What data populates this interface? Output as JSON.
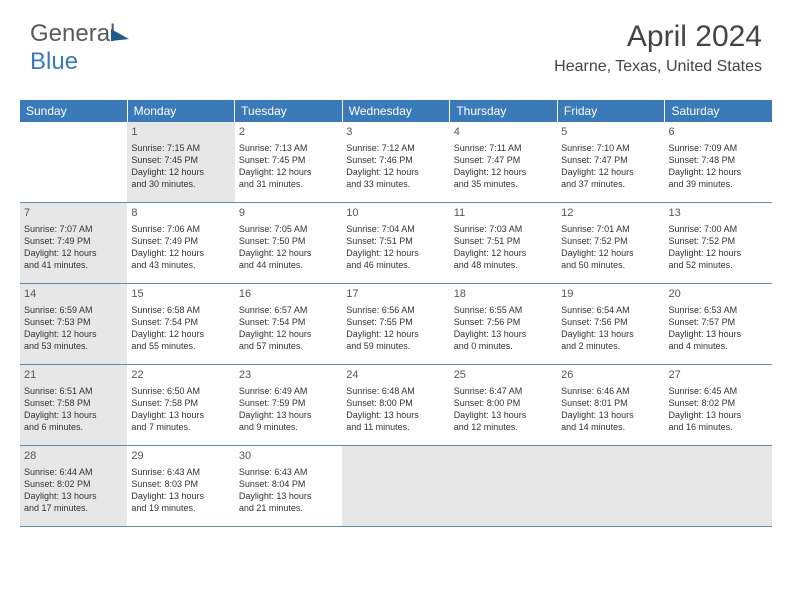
{
  "logo": {
    "part1": "General",
    "part2": "Blue"
  },
  "header": {
    "month_title": "April 2024",
    "location": "Hearne, Texas, United States"
  },
  "styling": {
    "header_bg": "#3a7ab8",
    "header_text": "#ffffff",
    "row_border": "#6688aa",
    "shaded_bg": "#e7e7e7",
    "text_color": "#333333",
    "month_title_fontsize": 30,
    "location_fontsize": 16,
    "weekday_fontsize": 12,
    "daynum_fontsize": 11,
    "cell_fontsize": 9
  },
  "weekdays": [
    "Sunday",
    "Monday",
    "Tuesday",
    "Wednesday",
    "Thursday",
    "Friday",
    "Saturday"
  ],
  "weeks": [
    [
      {
        "day": "",
        "shaded": false,
        "sunrise": "",
        "sunset": "",
        "daylight1": "",
        "daylight2": ""
      },
      {
        "day": "1",
        "shaded": true,
        "sunrise": "Sunrise: 7:15 AM",
        "sunset": "Sunset: 7:45 PM",
        "daylight1": "Daylight: 12 hours",
        "daylight2": "and 30 minutes."
      },
      {
        "day": "2",
        "shaded": false,
        "sunrise": "Sunrise: 7:13 AM",
        "sunset": "Sunset: 7:45 PM",
        "daylight1": "Daylight: 12 hours",
        "daylight2": "and 31 minutes."
      },
      {
        "day": "3",
        "shaded": false,
        "sunrise": "Sunrise: 7:12 AM",
        "sunset": "Sunset: 7:46 PM",
        "daylight1": "Daylight: 12 hours",
        "daylight2": "and 33 minutes."
      },
      {
        "day": "4",
        "shaded": false,
        "sunrise": "Sunrise: 7:11 AM",
        "sunset": "Sunset: 7:47 PM",
        "daylight1": "Daylight: 12 hours",
        "daylight2": "and 35 minutes."
      },
      {
        "day": "5",
        "shaded": false,
        "sunrise": "Sunrise: 7:10 AM",
        "sunset": "Sunset: 7:47 PM",
        "daylight1": "Daylight: 12 hours",
        "daylight2": "and 37 minutes."
      },
      {
        "day": "6",
        "shaded": false,
        "sunrise": "Sunrise: 7:09 AM",
        "sunset": "Sunset: 7:48 PM",
        "daylight1": "Daylight: 12 hours",
        "daylight2": "and 39 minutes."
      }
    ],
    [
      {
        "day": "7",
        "shaded": true,
        "sunrise": "Sunrise: 7:07 AM",
        "sunset": "Sunset: 7:49 PM",
        "daylight1": "Daylight: 12 hours",
        "daylight2": "and 41 minutes."
      },
      {
        "day": "8",
        "shaded": false,
        "sunrise": "Sunrise: 7:06 AM",
        "sunset": "Sunset: 7:49 PM",
        "daylight1": "Daylight: 12 hours",
        "daylight2": "and 43 minutes."
      },
      {
        "day": "9",
        "shaded": false,
        "sunrise": "Sunrise: 7:05 AM",
        "sunset": "Sunset: 7:50 PM",
        "daylight1": "Daylight: 12 hours",
        "daylight2": "and 44 minutes."
      },
      {
        "day": "10",
        "shaded": false,
        "sunrise": "Sunrise: 7:04 AM",
        "sunset": "Sunset: 7:51 PM",
        "daylight1": "Daylight: 12 hours",
        "daylight2": "and 46 minutes."
      },
      {
        "day": "11",
        "shaded": false,
        "sunrise": "Sunrise: 7:03 AM",
        "sunset": "Sunset: 7:51 PM",
        "daylight1": "Daylight: 12 hours",
        "daylight2": "and 48 minutes."
      },
      {
        "day": "12",
        "shaded": false,
        "sunrise": "Sunrise: 7:01 AM",
        "sunset": "Sunset: 7:52 PM",
        "daylight1": "Daylight: 12 hours",
        "daylight2": "and 50 minutes."
      },
      {
        "day": "13",
        "shaded": false,
        "sunrise": "Sunrise: 7:00 AM",
        "sunset": "Sunset: 7:52 PM",
        "daylight1": "Daylight: 12 hours",
        "daylight2": "and 52 minutes."
      }
    ],
    [
      {
        "day": "14",
        "shaded": true,
        "sunrise": "Sunrise: 6:59 AM",
        "sunset": "Sunset: 7:53 PM",
        "daylight1": "Daylight: 12 hours",
        "daylight2": "and 53 minutes."
      },
      {
        "day": "15",
        "shaded": false,
        "sunrise": "Sunrise: 6:58 AM",
        "sunset": "Sunset: 7:54 PM",
        "daylight1": "Daylight: 12 hours",
        "daylight2": "and 55 minutes."
      },
      {
        "day": "16",
        "shaded": false,
        "sunrise": "Sunrise: 6:57 AM",
        "sunset": "Sunset: 7:54 PM",
        "daylight1": "Daylight: 12 hours",
        "daylight2": "and 57 minutes."
      },
      {
        "day": "17",
        "shaded": false,
        "sunrise": "Sunrise: 6:56 AM",
        "sunset": "Sunset: 7:55 PM",
        "daylight1": "Daylight: 12 hours",
        "daylight2": "and 59 minutes."
      },
      {
        "day": "18",
        "shaded": false,
        "sunrise": "Sunrise: 6:55 AM",
        "sunset": "Sunset: 7:56 PM",
        "daylight1": "Daylight: 13 hours",
        "daylight2": "and 0 minutes."
      },
      {
        "day": "19",
        "shaded": false,
        "sunrise": "Sunrise: 6:54 AM",
        "sunset": "Sunset: 7:56 PM",
        "daylight1": "Daylight: 13 hours",
        "daylight2": "and 2 minutes."
      },
      {
        "day": "20",
        "shaded": false,
        "sunrise": "Sunrise: 6:53 AM",
        "sunset": "Sunset: 7:57 PM",
        "daylight1": "Daylight: 13 hours",
        "daylight2": "and 4 minutes."
      }
    ],
    [
      {
        "day": "21",
        "shaded": true,
        "sunrise": "Sunrise: 6:51 AM",
        "sunset": "Sunset: 7:58 PM",
        "daylight1": "Daylight: 13 hours",
        "daylight2": "and 6 minutes."
      },
      {
        "day": "22",
        "shaded": false,
        "sunrise": "Sunrise: 6:50 AM",
        "sunset": "Sunset: 7:58 PM",
        "daylight1": "Daylight: 13 hours",
        "daylight2": "and 7 minutes."
      },
      {
        "day": "23",
        "shaded": false,
        "sunrise": "Sunrise: 6:49 AM",
        "sunset": "Sunset: 7:59 PM",
        "daylight1": "Daylight: 13 hours",
        "daylight2": "and 9 minutes."
      },
      {
        "day": "24",
        "shaded": false,
        "sunrise": "Sunrise: 6:48 AM",
        "sunset": "Sunset: 8:00 PM",
        "daylight1": "Daylight: 13 hours",
        "daylight2": "and 11 minutes."
      },
      {
        "day": "25",
        "shaded": false,
        "sunrise": "Sunrise: 6:47 AM",
        "sunset": "Sunset: 8:00 PM",
        "daylight1": "Daylight: 13 hours",
        "daylight2": "and 12 minutes."
      },
      {
        "day": "26",
        "shaded": false,
        "sunrise": "Sunrise: 6:46 AM",
        "sunset": "Sunset: 8:01 PM",
        "daylight1": "Daylight: 13 hours",
        "daylight2": "and 14 minutes."
      },
      {
        "day": "27",
        "shaded": false,
        "sunrise": "Sunrise: 6:45 AM",
        "sunset": "Sunset: 8:02 PM",
        "daylight1": "Daylight: 13 hours",
        "daylight2": "and 16 minutes."
      }
    ],
    [
      {
        "day": "28",
        "shaded": true,
        "sunrise": "Sunrise: 6:44 AM",
        "sunset": "Sunset: 8:02 PM",
        "daylight1": "Daylight: 13 hours",
        "daylight2": "and 17 minutes."
      },
      {
        "day": "29",
        "shaded": false,
        "sunrise": "Sunrise: 6:43 AM",
        "sunset": "Sunset: 8:03 PM",
        "daylight1": "Daylight: 13 hours",
        "daylight2": "and 19 minutes."
      },
      {
        "day": "30",
        "shaded": false,
        "sunrise": "Sunrise: 6:43 AM",
        "sunset": "Sunset: 8:04 PM",
        "daylight1": "Daylight: 13 hours",
        "daylight2": "and 21 minutes."
      },
      {
        "day": "",
        "shaded": true,
        "sunrise": "",
        "sunset": "",
        "daylight1": "",
        "daylight2": ""
      },
      {
        "day": "",
        "shaded": true,
        "sunrise": "",
        "sunset": "",
        "daylight1": "",
        "daylight2": ""
      },
      {
        "day": "",
        "shaded": true,
        "sunrise": "",
        "sunset": "",
        "daylight1": "",
        "daylight2": ""
      },
      {
        "day": "",
        "shaded": true,
        "sunrise": "",
        "sunset": "",
        "daylight1": "",
        "daylight2": ""
      }
    ]
  ]
}
